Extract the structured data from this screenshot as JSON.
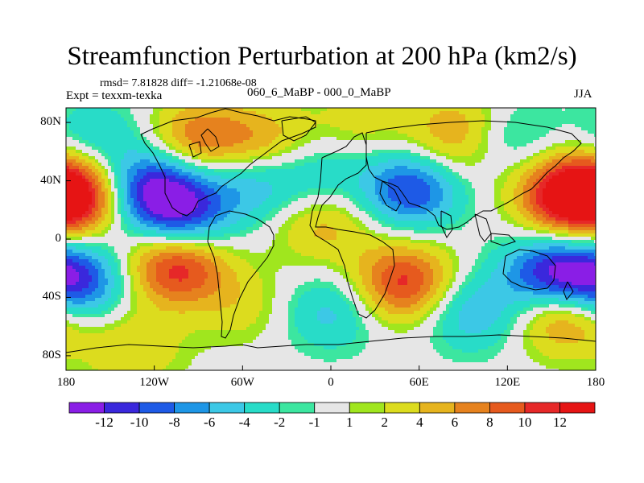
{
  "chart_data": {
    "type": "heatmap",
    "title": "Streamfunction Perturbation at 200 hPa (km2/s)",
    "stats_text": "rmsd= 7.81828 diff= -1.21068e-08",
    "experiment": "Expt = texxm-texka",
    "comparison": "060_6_MaBP - 000_0_MaBP",
    "season": "JJA",
    "xlim": [
      -180,
      180
    ],
    "ylim": [
      -90,
      90
    ],
    "x_ticks": [
      {
        "value": -180,
        "label": "180"
      },
      {
        "value": -120,
        "label": "120W"
      },
      {
        "value": -60,
        "label": "60W"
      },
      {
        "value": 0,
        "label": "0"
      },
      {
        "value": 60,
        "label": "60E"
      },
      {
        "value": 120,
        "label": "120E"
      },
      {
        "value": 180,
        "label": "180"
      }
    ],
    "y_ticks": [
      {
        "value": 80,
        "label": "80N"
      },
      {
        "value": 40,
        "label": "40N"
      },
      {
        "value": 0,
        "label": "0"
      },
      {
        "value": -40,
        "label": "40S"
      },
      {
        "value": -80,
        "label": "80S"
      }
    ],
    "colorbar": {
      "levels": [
        -12,
        -10,
        -8,
        -6,
        -4,
        -2,
        -1,
        1,
        2,
        4,
        6,
        8,
        10,
        12
      ],
      "labels": [
        "-12",
        "-10",
        "-8",
        "-6",
        "-4",
        "-2",
        "-1",
        "1",
        "2",
        "4",
        "6",
        "8",
        "10",
        "12"
      ],
      "colors": [
        "#8a1ee6",
        "#3a28dc",
        "#1e5ae6",
        "#1e96e6",
        "#3cc8e6",
        "#28dcc8",
        "#3ce6a0",
        "#e6e6e6",
        "#a0e61e",
        "#dcdc1e",
        "#e6b41e",
        "#e6821e",
        "#e65a1e",
        "#e62828",
        "#e61414"
      ]
    },
    "field_features": [
      {
        "lon": -175,
        "lat": 30,
        "value": 13
      },
      {
        "lon": -120,
        "lat": 35,
        "value": -12
      },
      {
        "lon": -90,
        "lat": 68,
        "value": 8
      },
      {
        "lon": -45,
        "lat": 65,
        "value": 6
      },
      {
        "lon": -55,
        "lat": 40,
        "value": -6
      },
      {
        "lon": -105,
        "lat": -18,
        "value": 12
      },
      {
        "lon": -175,
        "lat": -30,
        "value": -12
      },
      {
        "lon": -100,
        "lat": 15,
        "value": -9
      },
      {
        "lon": -5,
        "lat": 10,
        "value": 5
      },
      {
        "lon": -10,
        "lat": 45,
        "value": -4
      },
      {
        "lon": 55,
        "lat": 35,
        "value": -11
      },
      {
        "lon": 50,
        "lat": -30,
        "value": 11
      },
      {
        "lon": 160,
        "lat": 30,
        "value": 12
      },
      {
        "lon": 150,
        "lat": -25,
        "value": -12
      },
      {
        "lon": 160,
        "lat": -50,
        "value": 10
      },
      {
        "lon": 95,
        "lat": -50,
        "value": -6
      },
      {
        "lon": 0,
        "lat": -50,
        "value": -5
      },
      {
        "lon": -135,
        "lat": -75,
        "value": 4
      },
      {
        "lon": 90,
        "lat": 80,
        "value": 4
      },
      {
        "lon": 20,
        "lat": 80,
        "value": 3
      },
      {
        "lon": 80,
        "lat": 60,
        "value": 4
      },
      {
        "lon": -160,
        "lat": 70,
        "value": -4
      },
      {
        "lon": 120,
        "lat": 70,
        "value": -4
      },
      {
        "lon": -60,
        "lat": -45,
        "value": 3
      }
    ]
  }
}
